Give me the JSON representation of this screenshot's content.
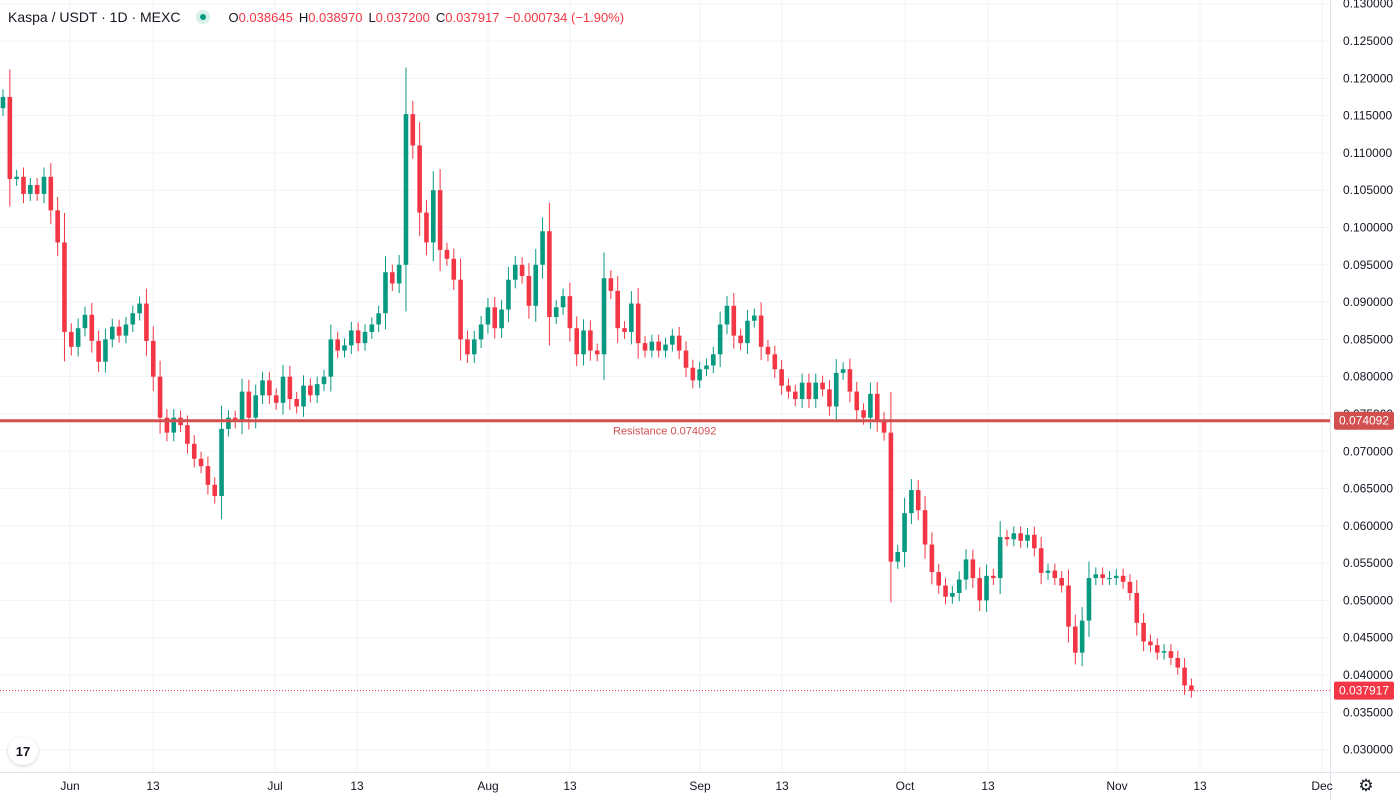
{
  "header": {
    "symbol": "Kaspa / USDT · 1D · MEXC",
    "open_label": "O",
    "open": "0.038645",
    "high_label": "H",
    "high": "0.038970",
    "low_label": "L",
    "low": "0.037200",
    "close_label": "C",
    "close": "0.037917",
    "change": "−0.000734 (−1.90%)"
  },
  "logo_text": "17",
  "settings_icon": "gear-icon",
  "colors": {
    "up": "#089981",
    "down": "#f23645",
    "resistance": "#d14f4f",
    "grid": "#f0f3fa"
  },
  "chart_data": {
    "type": "candlestick",
    "title": "Kaspa / USDT · 1D · MEXC",
    "xlabel": "",
    "ylabel": "",
    "ylim": [
      0.027,
      0.1305
    ],
    "x_ticks": [
      "Jun",
      "13",
      "Jul",
      "13",
      "Aug",
      "13",
      "Sep",
      "13",
      "Oct",
      "13",
      "Nov",
      "13",
      "Dec"
    ],
    "y_ticks": [
      "0.030000",
      "0.035000",
      "0.040000",
      "0.045000",
      "0.050000",
      "0.055000",
      "0.060000",
      "0.065000",
      "0.070000",
      "0.075000",
      "0.080000",
      "0.085000",
      "0.090000",
      "0.095000",
      "0.100000",
      "0.105000",
      "0.110000",
      "0.115000",
      "0.120000",
      "0.125000",
      "0.130000"
    ],
    "resistance": {
      "label": "Resistance 0.074092",
      "value": 0.074092,
      "badge": "0.074092"
    },
    "last_price": {
      "value": 0.037917,
      "badge": "0.037917"
    },
    "grid": true,
    "series_closes": [
      0.1175,
      0.1065,
      0.1068,
      0.1045,
      0.1057,
      0.1045,
      0.1068,
      0.1023,
      0.098,
      0.086,
      0.084,
      0.0865,
      0.0883,
      0.0848,
      0.082,
      0.085,
      0.0867,
      0.0855,
      0.087,
      0.0885,
      0.0898,
      0.0848,
      0.08,
      0.0745,
      0.0725,
      0.0745,
      0.0735,
      0.071,
      0.069,
      0.068,
      0.0655,
      0.064,
      0.073,
      0.0745,
      0.074,
      0.078,
      0.0745,
      0.0775,
      0.0795,
      0.0775,
      0.0765,
      0.08,
      0.077,
      0.076,
      0.0788,
      0.0775,
      0.079,
      0.08,
      0.085,
      0.0835,
      0.0842,
      0.0862,
      0.0845,
      0.086,
      0.087,
      0.0885,
      0.094,
      0.0925,
      0.095,
      0.1152,
      0.111,
      0.102,
      0.098,
      0.105,
      0.097,
      0.0958,
      0.093,
      0.085,
      0.083,
      0.085,
      0.087,
      0.0893,
      0.0865,
      0.089,
      0.093,
      0.095,
      0.0935,
      0.0895,
      0.095,
      0.0995,
      0.088,
      0.0893,
      0.0908,
      0.0865,
      0.083,
      0.0862,
      0.0835,
      0.083,
      0.0932,
      0.0915,
      0.0865,
      0.086,
      0.0898,
      0.0845,
      0.0835,
      0.0847,
      0.0835,
      0.0843,
      0.0855,
      0.0835,
      0.0812,
      0.0795,
      0.081,
      0.0815,
      0.083,
      0.087,
      0.0895,
      0.0855,
      0.0845,
      0.0875,
      0.0882,
      0.084,
      0.083,
      0.081,
      0.0788,
      0.078,
      0.077,
      0.0792,
      0.077,
      0.0792,
      0.0783,
      0.076,
      0.0805,
      0.081,
      0.078,
      0.0755,
      0.0745,
      0.0777,
      0.0742,
      0.0725,
      0.0552,
      0.0565,
      0.0617,
      0.0648,
      0.0621,
      0.0575,
      0.0538,
      0.052,
      0.0505,
      0.051,
      0.0528,
      0.0555,
      0.053,
      0.05,
      0.0533,
      0.053,
      0.0585,
      0.0582,
      0.059,
      0.058,
      0.0588,
      0.057,
      0.0537,
      0.054,
      0.053,
      0.052,
      0.0465,
      0.043,
      0.0473,
      0.053,
      0.0535,
      0.053,
      0.053,
      0.0533,
      0.0525,
      0.051,
      0.047,
      0.0445,
      0.044,
      0.043,
      0.0432,
      0.0423,
      0.041,
      0.0386,
      0.0379
    ]
  }
}
